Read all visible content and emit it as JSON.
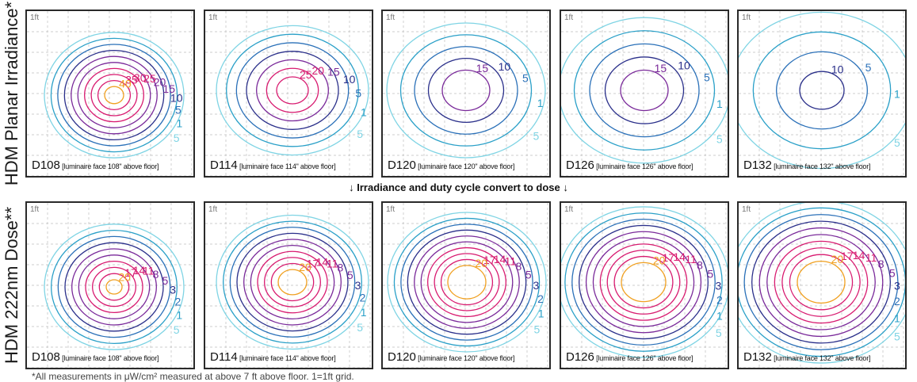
{
  "figure": {
    "row_labels": {
      "irradiance": "HDM Planar Irradiance*",
      "dose": "HDM 222nm Dose**"
    },
    "middle_caption": "Irradiance and duty cycle convert to dose",
    "footnote": "*All measurements in μW/cm² measured at above 7 ft above floor. 1=1ft grid.",
    "grid_label": "1ft",
    "colors": {
      "orange": "#f0a020",
      "magenta": "#d81b70",
      "purple": "#7a2a9a",
      "navy": "#2a2f8a",
      "blue": "#2a70b8",
      "teal": "#2aa0c8",
      "light": "#7fd4e4",
      "grid": "#bdbdbd"
    }
  },
  "panels": {
    "irradiance": [
      {
        "code": "D108",
        "desc": "[luminaire face 108\" above floor]",
        "contours": [
          {
            "v": "40",
            "c": "orange"
          },
          {
            "v": "35",
            "c": "magenta"
          },
          {
            "v": "30",
            "c": "magenta"
          },
          {
            "v": "25",
            "c": "magenta"
          },
          {
            "v": "20",
            "c": "purple"
          },
          {
            "v": "15",
            "c": "purple"
          },
          {
            "v": "10",
            "c": "navy"
          },
          {
            "v": "5",
            "c": "blue"
          },
          {
            "v": "1",
            "c": "teal"
          },
          {
            "v": "5",
            "c": "light"
          }
        ]
      },
      {
        "code": "D114",
        "desc": "[luminaire face 114\" above floor]",
        "contours": [
          {
            "v": "25",
            "c": "magenta"
          },
          {
            "v": "20",
            "c": "magenta"
          },
          {
            "v": "15",
            "c": "purple"
          },
          {
            "v": "10",
            "c": "navy"
          },
          {
            "v": "5",
            "c": "blue"
          },
          {
            "v": "1",
            "c": "teal"
          },
          {
            "v": "5",
            "c": "light"
          }
        ]
      },
      {
        "code": "D120",
        "desc": "[luminaire face 120\" above floor]",
        "contours": [
          {
            "v": "15",
            "c": "purple"
          },
          {
            "v": "10",
            "c": "navy"
          },
          {
            "v": "5",
            "c": "blue"
          },
          {
            "v": "1",
            "c": "teal"
          },
          {
            "v": "5",
            "c": "light"
          }
        ]
      },
      {
        "code": "D126",
        "desc": "[luminaire face 126\" above floor]",
        "contours": [
          {
            "v": "15",
            "c": "purple"
          },
          {
            "v": "10",
            "c": "navy"
          },
          {
            "v": "5",
            "c": "blue"
          },
          {
            "v": "1",
            "c": "teal"
          },
          {
            "v": "5",
            "c": "light"
          }
        ]
      },
      {
        "code": "D132",
        "desc": "[luminaire face 132\" above floor]",
        "contours": [
          {
            "v": "10",
            "c": "navy"
          },
          {
            "v": "5",
            "c": "blue"
          },
          {
            "v": "1",
            "c": "teal"
          },
          {
            "v": "5",
            "c": "light"
          }
        ]
      }
    ],
    "dose": [
      {
        "code": "D108",
        "desc": "[luminaire face 108\" above floor]",
        "contours": [
          {
            "v": "20",
            "c": "orange"
          },
          {
            "v": "17",
            "c": "magenta"
          },
          {
            "v": "14",
            "c": "magenta"
          },
          {
            "v": "11",
            "c": "magenta"
          },
          {
            "v": "8",
            "c": "purple"
          },
          {
            "v": "5",
            "c": "purple"
          },
          {
            "v": "3",
            "c": "navy"
          },
          {
            "v": "2",
            "c": "blue"
          },
          {
            "v": "1",
            "c": "teal"
          },
          {
            "v": "5",
            "c": "light"
          }
        ]
      },
      {
        "code": "D114",
        "desc": "[luminaire face 114\" above floor]",
        "contours": [
          {
            "v": "20",
            "c": "orange"
          },
          {
            "v": "17",
            "c": "magenta"
          },
          {
            "v": "14",
            "c": "magenta"
          },
          {
            "v": "11",
            "c": "magenta"
          },
          {
            "v": "8",
            "c": "purple"
          },
          {
            "v": "5",
            "c": "purple"
          },
          {
            "v": "3",
            "c": "navy"
          },
          {
            "v": "2",
            "c": "blue"
          },
          {
            "v": "1",
            "c": "teal"
          },
          {
            "v": "5",
            "c": "light"
          }
        ]
      },
      {
        "code": "D120",
        "desc": "[luminaire face 120\" above floor]",
        "contours": [
          {
            "v": "20",
            "c": "orange"
          },
          {
            "v": "17",
            "c": "magenta"
          },
          {
            "v": "14",
            "c": "magenta"
          },
          {
            "v": "11",
            "c": "magenta"
          },
          {
            "v": "8",
            "c": "purple"
          },
          {
            "v": "5",
            "c": "purple"
          },
          {
            "v": "3",
            "c": "navy"
          },
          {
            "v": "2",
            "c": "blue"
          },
          {
            "v": "1",
            "c": "teal"
          },
          {
            "v": "5",
            "c": "light"
          }
        ]
      },
      {
        "code": "D126",
        "desc": "[luminaire face 126\" above floor]",
        "contours": [
          {
            "v": "20",
            "c": "orange"
          },
          {
            "v": "17",
            "c": "magenta"
          },
          {
            "v": "14",
            "c": "magenta"
          },
          {
            "v": "11",
            "c": "magenta"
          },
          {
            "v": "8",
            "c": "purple"
          },
          {
            "v": "5",
            "c": "purple"
          },
          {
            "v": "3",
            "c": "navy"
          },
          {
            "v": "2",
            "c": "blue"
          },
          {
            "v": "1",
            "c": "teal"
          },
          {
            "v": "5",
            "c": "light"
          }
        ]
      },
      {
        "code": "D132",
        "desc": "[luminaire face 132\" above floor]",
        "contours": [
          {
            "v": "20",
            "c": "orange"
          },
          {
            "v": "17",
            "c": "magenta"
          },
          {
            "v": "14",
            "c": "magenta"
          },
          {
            "v": "11",
            "c": "magenta"
          },
          {
            "v": "8",
            "c": "purple"
          },
          {
            "v": "5",
            "c": "purple"
          },
          {
            "v": "3",
            "c": "navy"
          },
          {
            "v": "2",
            "c": "blue"
          },
          {
            "v": "1",
            "c": "teal"
          },
          {
            "v": "5",
            "c": "light"
          }
        ]
      }
    ]
  }
}
